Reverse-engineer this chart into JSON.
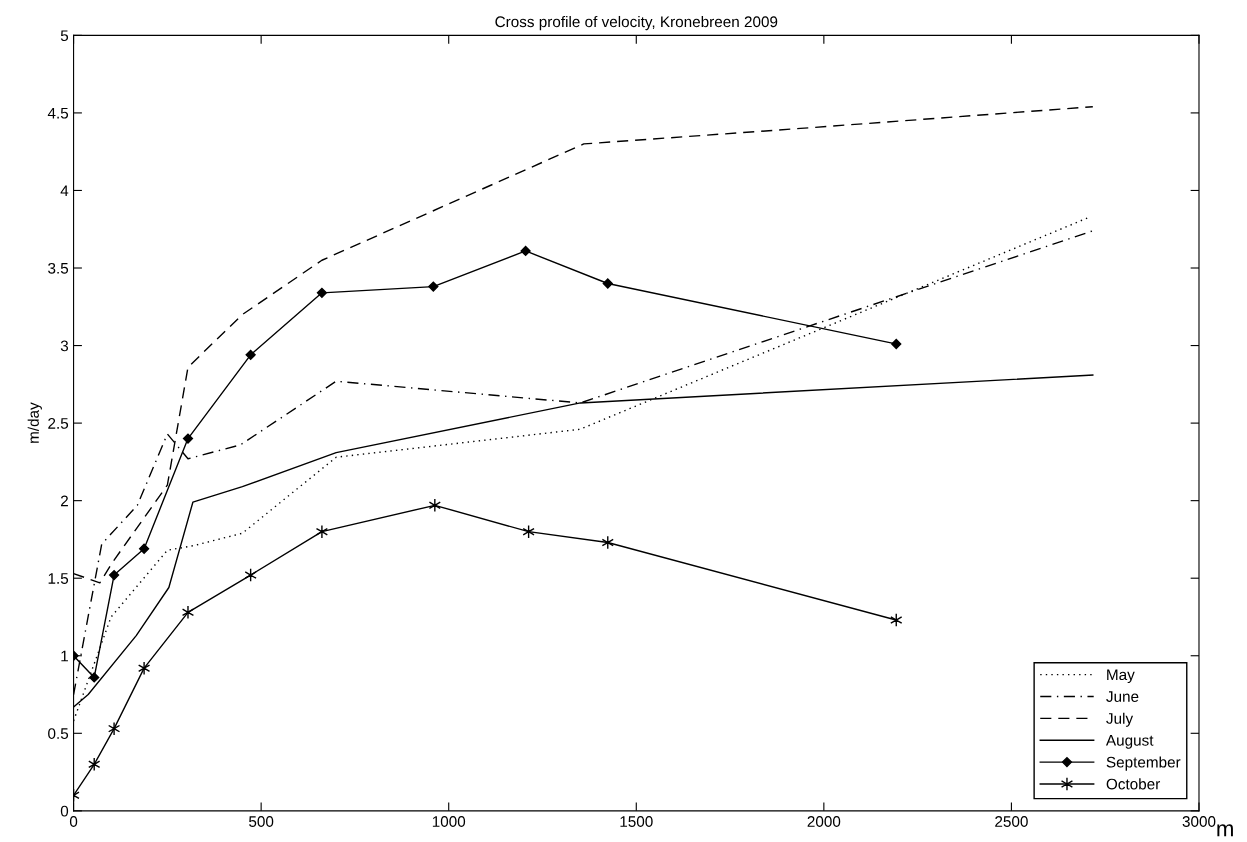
{
  "chart_data": {
    "type": "line",
    "title": "Cross profile of velocity, Kronebreen 2009",
    "xlabel": "m",
    "ylabel": "m/day",
    "xlim": [
      0,
      3000
    ],
    "xticks": [
      0,
      500,
      1000,
      1500,
      2000,
      2500,
      3000
    ],
    "ylim": [
      0,
      5
    ],
    "yticks": [
      0,
      0.5,
      1,
      1.5,
      2,
      2.5,
      3,
      3.5,
      4,
      4.5,
      5
    ],
    "grid": false,
    "legend": "bottom right",
    "series": [
      {
        "name": "May",
        "color": "#000000",
        "line_style": "dotted",
        "marker": "none",
        "x": [
          0,
          100,
          250,
          320,
          450,
          700,
          1350,
          2710
        ],
        "values": [
          0.58,
          1.25,
          1.68,
          1.71,
          1.79,
          2.28,
          2.46,
          3.83
        ]
      },
      {
        "name": "June",
        "color": "#000000",
        "line_style": "dashdot",
        "marker": "none",
        "x": [
          0,
          75,
          170,
          250,
          305,
          445,
          700,
          1351,
          2717
        ],
        "values": [
          0.75,
          1.72,
          1.97,
          2.43,
          2.27,
          2.36,
          2.77,
          2.63,
          3.74
        ]
      },
      {
        "name": "July",
        "color": "#000000",
        "line_style": "dashed",
        "marker": "none",
        "x": [
          0,
          70,
          103,
          250,
          305,
          450,
          662,
          1360,
          1938,
          2717
        ],
        "values": [
          1.53,
          1.47,
          1.6,
          2.1,
          2.86,
          3.2,
          3.55,
          4.3,
          4.4,
          4.54
        ]
      },
      {
        "name": "August",
        "color": "#000000",
        "line_style": "solid",
        "marker": "none",
        "x": [
          0,
          39,
          167,
          254,
          318,
          450,
          700,
          1351,
          2717
        ],
        "values": [
          0.67,
          0.75,
          1.13,
          1.44,
          1.99,
          2.09,
          2.31,
          2.63,
          2.81
        ]
      },
      {
        "name": "September",
        "color": "#000000",
        "line_style": "solid",
        "marker": "diamond",
        "x": [
          0,
          55,
          108,
          188,
          305,
          472,
          662,
          959,
          1205,
          1424,
          2193
        ],
        "values": [
          1.0,
          0.86,
          1.52,
          1.69,
          2.4,
          2.94,
          3.34,
          3.38,
          3.61,
          3.4,
          3.01
        ]
      },
      {
        "name": "October",
        "color": "#000000",
        "line_style": "solid",
        "marker": "cross",
        "x": [
          0,
          55,
          108,
          188,
          305,
          472,
          662,
          963,
          1213,
          1424,
          2193
        ],
        "values": [
          0.1,
          0.3,
          0.53,
          0.92,
          1.28,
          1.52,
          1.8,
          1.97,
          1.8,
          1.73,
          1.23
        ]
      }
    ]
  }
}
